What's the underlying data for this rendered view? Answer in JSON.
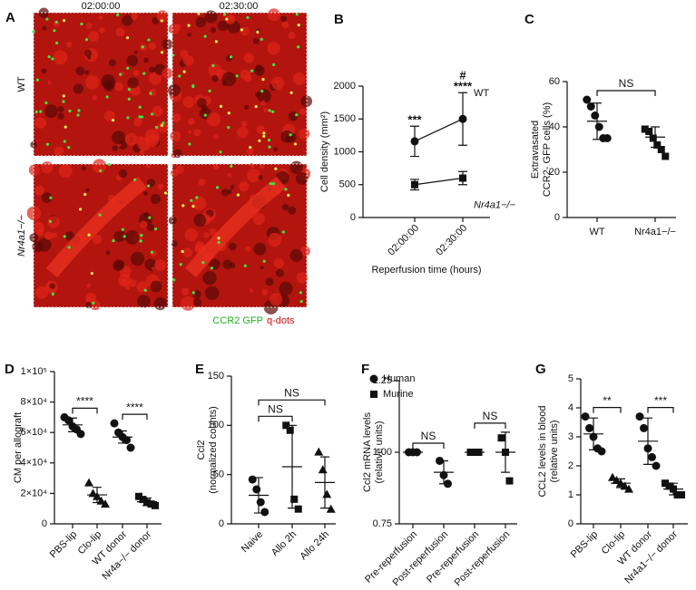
{
  "panel_a": {
    "label": "A",
    "columns": [
      "02:00:00",
      "02:30:00"
    ],
    "rows": [
      "WT",
      "Nr4a1−/−"
    ],
    "legend": [
      "CCR2 GFP",
      "q-dots"
    ]
  },
  "chart_data": [
    {
      "type": "line",
      "label": "B",
      "ylabel": [
        "Cell density (mm²)"
      ],
      "xlabel": "Reperfusion time (hours)",
      "categories": [
        "02:00:00",
        "02:30:00"
      ],
      "series": [
        {
          "name": "WT",
          "marker": "circle",
          "values": [
            1160,
            1500
          ],
          "errors": [
            230,
            400
          ]
        },
        {
          "name": "Nr4a1−/−",
          "marker": "square",
          "values": [
            500,
            600
          ],
          "errors": [
            80,
            100
          ]
        }
      ],
      "annotations": [
        {
          "text": "***",
          "category": 0
        },
        {
          "text": "****",
          "category": 1
        },
        {
          "text": "#",
          "category": 1
        }
      ],
      "ylim": [
        0,
        2000
      ],
      "yticks": [
        0,
        500,
        1000,
        1500,
        2000
      ]
    },
    {
      "type": "dot",
      "label": "C",
      "ylabel": [
        "Extravasated",
        "CCR2- GFP cells (%)"
      ],
      "categories": [
        "WT",
        "Nr4a1−/−"
      ],
      "groups": [
        {
          "marker": "circle",
          "points": [
            52,
            49,
            45,
            40,
            35,
            35
          ],
          "mean": 42.5,
          "sd": 8
        },
        {
          "marker": "square",
          "points": [
            39,
            38,
            35,
            32,
            30,
            27
          ],
          "mean": 35.5,
          "sd": 4.5
        }
      ],
      "brackets": [
        {
          "between": [
            0,
            1
          ],
          "text": "NS"
        }
      ],
      "ylim": [
        0,
        60
      ],
      "yticks": [
        0,
        20,
        40,
        60
      ]
    },
    {
      "type": "dot",
      "label": "D",
      "ylabel": [
        "CM per allograft"
      ],
      "categories": [
        "PBS-lip",
        "Clo-lip",
        "WT donor",
        "Nr4a−/− donor"
      ],
      "groups": [
        {
          "marker": "circle",
          "points": [
            70000,
            68000,
            64000,
            62000,
            59000
          ],
          "mean": 65000,
          "sd": 4500
        },
        {
          "marker": "triangle",
          "points": [
            27000,
            20000,
            18000,
            15000,
            13000
          ],
          "mean": 19000,
          "sd": 5000
        },
        {
          "marker": "circle",
          "points": [
            66000,
            60000,
            57000,
            55000,
            50000
          ],
          "mean": 57000,
          "sd": 4000
        },
        {
          "marker": "square",
          "points": [
            18000,
            16000,
            14000,
            13000,
            12000
          ],
          "mean": 14500,
          "sd": 2500
        }
      ],
      "brackets": [
        {
          "between": [
            0,
            1
          ],
          "text": "****"
        },
        {
          "between": [
            2,
            3
          ],
          "text": "****"
        }
      ],
      "ylim": [
        0,
        100000
      ],
      "yticks": [
        0,
        {
          "value": 20000,
          "label": "2×10⁴"
        },
        {
          "value": 40000,
          "label": "4×10⁴"
        },
        {
          "value": 60000,
          "label": "6×10⁴"
        },
        {
          "value": 80000,
          "label": "8×10⁴"
        },
        {
          "value": 100000,
          "label": "1×10⁵"
        }
      ]
    },
    {
      "type": "dot",
      "label": "E",
      "ylabel": [
        "Ccl2",
        "(normalized counts)"
      ],
      "categories": [
        "Naive",
        "Allo 2h",
        "Allo 24h"
      ],
      "groups": [
        {
          "marker": "circle",
          "points": [
            45,
            35,
            22,
            12
          ],
          "mean": 29,
          "sd": 18
        },
        {
          "marker": "square",
          "points": [
            100,
            95,
            25,
            15
          ],
          "mean": 58,
          "sd": 42
        },
        {
          "marker": "triangle",
          "points": [
            73,
            55,
            30,
            15
          ],
          "mean": 42,
          "sd": 26
        }
      ],
      "brackets": [
        {
          "between": [
            0,
            1
          ],
          "text": "NS"
        },
        {
          "between": [
            0,
            2
          ],
          "text": "NS"
        }
      ],
      "ylim": [
        0,
        150
      ],
      "yticks": [
        0,
        50,
        100,
        150
      ]
    },
    {
      "type": "dot",
      "label": "F",
      "ylabel": [
        "Ccl2 mRNA levels",
        "(relative units)"
      ],
      "categories": [
        "Pre-reperfusion",
        "Post-reperfusion",
        "Pre-reperfusion",
        "Post-reperfusion"
      ],
      "legend": [
        {
          "name": "Human",
          "marker": "circle"
        },
        {
          "name": "Murine",
          "marker": "square"
        }
      ],
      "groups": [
        {
          "marker": "circle",
          "points": [
            1,
            1,
            1
          ],
          "mean": 1,
          "sd": 0
        },
        {
          "marker": "circle",
          "points": [
            0.97,
            0.92,
            0.89
          ],
          "mean": 0.93,
          "sd": 0.04
        },
        {
          "marker": "square",
          "points": [
            1,
            1,
            1
          ],
          "mean": 1,
          "sd": 0
        },
        {
          "marker": "square",
          "points": [
            1.05,
            1,
            0.9
          ],
          "mean": 1,
          "sd": 0.07
        }
      ],
      "brackets": [
        {
          "between": [
            0,
            1
          ],
          "text": "NS"
        },
        {
          "between": [
            2,
            3
          ],
          "text": "NS"
        }
      ],
      "ylim": [
        0.75,
        1.25
      ],
      "yticks": [
        0.75,
        {
          "value": 1,
          "label": "1.00"
        },
        1.25
      ]
    },
    {
      "type": "dot",
      "label": "G",
      "ylabel": [
        "CCL2 levels in blood",
        "(relative units)"
      ],
      "categories": [
        "PBS-lip",
        "Clo-lip",
        "WT donor",
        "Nr4a1−/− donor"
      ],
      "groups": [
        {
          "marker": "circle",
          "points": [
            3.7,
            3.3,
            3,
            2.6,
            2.5
          ],
          "mean": 3.1,
          "sd": 0.55
        },
        {
          "marker": "triangle",
          "points": [
            1.6,
            1.5,
            1.4,
            1.3,
            1.2
          ],
          "mean": 1.4,
          "sd": 0.15
        },
        {
          "marker": "circle",
          "points": [
            3.7,
            3.3,
            2.6,
            2.3,
            2
          ],
          "mean": 2.85,
          "sd": 0.8
        },
        {
          "marker": "square",
          "points": [
            1.4,
            1.3,
            1.2,
            1,
            1
          ],
          "mean": 1.2,
          "sd": 0.2
        }
      ],
      "brackets": [
        {
          "between": [
            0,
            1
          ],
          "text": "**"
        },
        {
          "between": [
            2,
            3
          ],
          "text": "***"
        }
      ],
      "ylim": [
        0,
        5
      ],
      "yticks": [
        0,
        1,
        2,
        3,
        4,
        5
      ]
    }
  ]
}
